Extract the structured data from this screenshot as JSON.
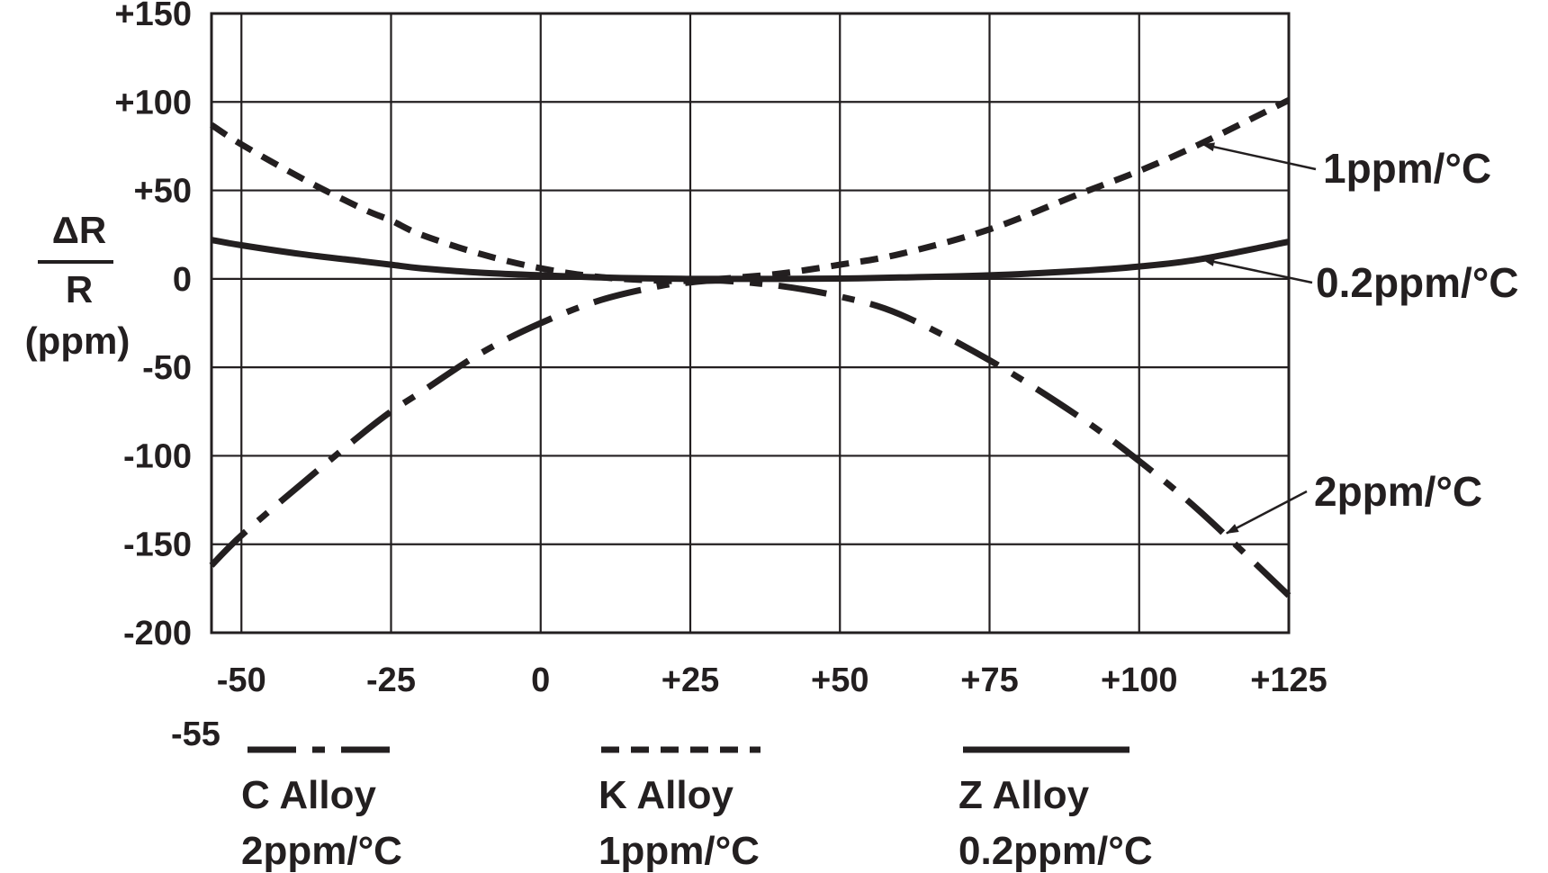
{
  "chart_data": {
    "type": "line",
    "ylabel_top": "ΔR",
    "ylabel_bottom": "R",
    "ylabel_unit": "(ppm)",
    "xlim": [
      -55,
      125
    ],
    "ylim": [
      -200,
      150
    ],
    "x_ticks": [
      -50,
      -25,
      0,
      25,
      50,
      75,
      100,
      125
    ],
    "x_tick_labels": [
      "-50",
      "-25",
      "0",
      "+25",
      "+50",
      "+75",
      "+100",
      "+125"
    ],
    "x_extra_label": "-55",
    "y_ticks": [
      150,
      100,
      50,
      0,
      -50,
      -100,
      -150,
      -200
    ],
    "y_tick_labels": [
      "+150",
      "+100",
      "+50",
      "0",
      "-50",
      "-100",
      "-150",
      "-200"
    ],
    "grid": true,
    "series": [
      {
        "name": "C Alloy",
        "legend_sub": "2ppm/°C",
        "annotation": "2ppm/°C",
        "style": "dash-dot",
        "x": [
          -55,
          -50,
          -40,
          -30,
          -25,
          -20,
          -10,
          0,
          10,
          20,
          25,
          30,
          40,
          50,
          60,
          75,
          90,
          100,
          110,
          125
        ],
        "y": [
          -162,
          -145,
          -116,
          -88,
          -75,
          -64,
          -42,
          -25,
          -12,
          -4,
          -2,
          -1,
          -4,
          -10,
          -20,
          -46,
          -78,
          -103,
          -131,
          -179
        ]
      },
      {
        "name": "K Alloy",
        "legend_sub": "1ppm/°C",
        "annotation": "1ppm/°C",
        "style": "dashed",
        "x": [
          -55,
          -50,
          -40,
          -30,
          -25,
          -20,
          -10,
          0,
          10,
          20,
          25,
          30,
          40,
          50,
          60,
          75,
          90,
          100,
          110,
          125
        ],
        "y": [
          87,
          76,
          57,
          40,
          33,
          25,
          14,
          6,
          1,
          -1,
          -1,
          0,
          3,
          8,
          14,
          28,
          48,
          61,
          76,
          101
        ]
      },
      {
        "name": "Z Alloy",
        "legend_sub": "0.2ppm/°C",
        "annotation": "0.2ppm/°C",
        "style": "solid",
        "x": [
          -55,
          -50,
          -40,
          -30,
          -25,
          -20,
          -10,
          0,
          10,
          20,
          25,
          30,
          40,
          50,
          60,
          75,
          90,
          100,
          110,
          125
        ],
        "y": [
          22,
          19,
          14,
          10,
          8,
          6,
          3.5,
          2,
          0.8,
          0.2,
          0,
          0,
          0,
          0.2,
          0.8,
          2,
          4.5,
          7,
          11,
          21
        ]
      }
    ]
  }
}
